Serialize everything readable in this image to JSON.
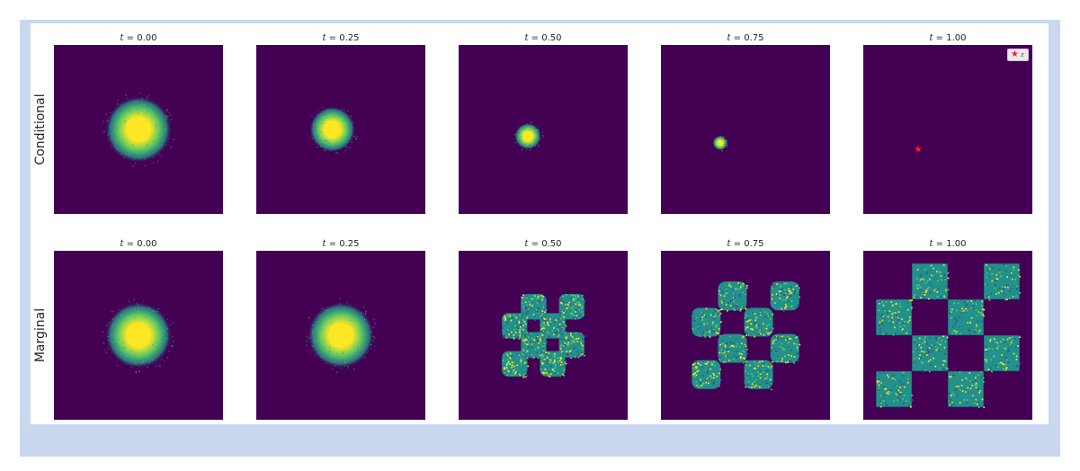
{
  "colors": {
    "background": "#440154",
    "core": "#fde725",
    "mid": "#5ec962",
    "edge": "#21918c",
    "star": "#ff1a1a"
  },
  "chart_data": [
    {
      "type": "heatmap",
      "row_label": "Conditional",
      "panels": [
        {
          "title_var": "t",
          "title_value": "= 0.00",
          "kind": "blob",
          "cx": 0.0,
          "cy": 0.0,
          "sigma": 0.55
        },
        {
          "title_var": "t",
          "title_value": "= 0.25",
          "kind": "blob",
          "cx": -0.1,
          "cy": 0.0,
          "sigma": 0.38
        },
        {
          "title_var": "t",
          "title_value": "= 0.50",
          "kind": "blob",
          "cx": -0.18,
          "cy": -0.08,
          "sigma": 0.22
        },
        {
          "title_var": "t",
          "title_value": "= 0.75",
          "kind": "blob",
          "cx": -0.3,
          "cy": -0.16,
          "sigma": 0.12
        },
        {
          "title_var": "t",
          "title_value": "= 1.00",
          "kind": "point",
          "cx": -0.35,
          "cy": -0.23,
          "legend": "z"
        }
      ]
    },
    {
      "type": "heatmap",
      "row_label": "Marginal",
      "panels": [
        {
          "title_var": "t",
          "title_value": "= 0.00",
          "kind": "blob",
          "cx": 0.0,
          "cy": 0.0,
          "sigma": 0.55
        },
        {
          "title_var": "t",
          "title_value": "= 0.25",
          "kind": "blob",
          "cx": 0.0,
          "cy": 0.0,
          "sigma": 0.55
        },
        {
          "title_var": "t",
          "title_value": "= 0.50",
          "kind": "checker",
          "spread": 0.45,
          "sq": 0.3
        },
        {
          "title_var": "t",
          "title_value": "= 0.75",
          "kind": "checker",
          "spread": 0.62,
          "sq": 0.34
        },
        {
          "title_var": "t",
          "title_value": "= 1.00",
          "kind": "checker",
          "spread": 0.85,
          "sq": 0.42
        }
      ]
    }
  ]
}
